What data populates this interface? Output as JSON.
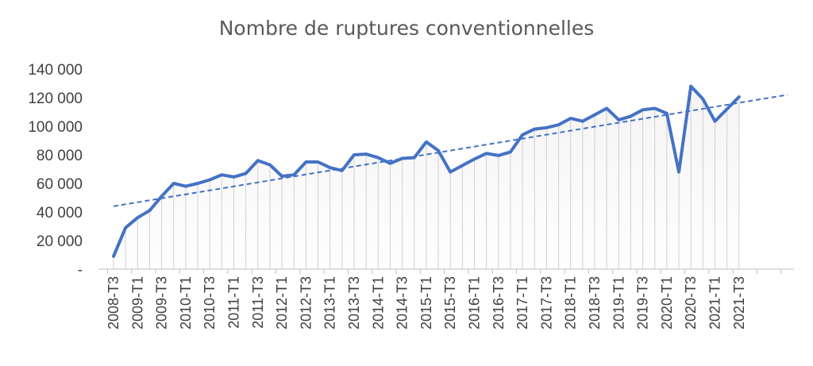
{
  "colors": {
    "series": "#4472C4",
    "trend": "#4472C4",
    "drop_line": "#d0d0d0",
    "fill_top": "#f4f4f4",
    "axis": "#bfbfbf",
    "text": "#404040",
    "title": "#595959"
  },
  "chart_data": {
    "type": "line",
    "title": "Nombre de ruptures conventionnelles",
    "xlabel": "",
    "ylabel": "",
    "ylim": [
      0,
      140000
    ],
    "y_ticks": [
      0,
      20000,
      40000,
      60000,
      80000,
      100000,
      120000,
      140000
    ],
    "y_tick_labels": [
      "-",
      "20 000",
      "40 000",
      "60 000",
      "80 000",
      "100 000",
      "120 000",
      "140 000"
    ],
    "x_tick_labels": [
      "2008-T3",
      "2009-T1",
      "2009-T3",
      "2010-T1",
      "2010-T3",
      "2011-T1",
      "2011-T3",
      "2012-T1",
      "2012-T3",
      "2013-T1",
      "2013-T3",
      "2014-T1",
      "2014-T3",
      "2015-T1",
      "2015-T3",
      "2016-T1",
      "2016-T3",
      "2017-T1",
      "2017-T3",
      "2018-T1",
      "2018-T3",
      "2019-T1",
      "2019-T3",
      "2020-T1",
      "2020-T3",
      "2021-T1",
      "2021-T3"
    ],
    "grid": false,
    "legend": "none",
    "categories": [
      "2008-T3",
      "2008-T4",
      "2009-T1",
      "2009-T2",
      "2009-T3",
      "2009-T4",
      "2010-T1",
      "2010-T2",
      "2010-T3",
      "2010-T4",
      "2011-T1",
      "2011-T2",
      "2011-T3",
      "2011-T4",
      "2012-T1",
      "2012-T2",
      "2012-T3",
      "2012-T4",
      "2013-T1",
      "2013-T2",
      "2013-T3",
      "2013-T4",
      "2014-T1",
      "2014-T2",
      "2014-T3",
      "2014-T4",
      "2015-T1",
      "2015-T2",
      "2015-T3",
      "2015-T4",
      "2016-T1",
      "2016-T2",
      "2016-T3",
      "2016-T4",
      "2017-T1",
      "2017-T2",
      "2017-T3",
      "2017-T4",
      "2018-T1",
      "2018-T2",
      "2018-T3",
      "2018-T4",
      "2019-T1",
      "2019-T2",
      "2019-T3",
      "2019-T4",
      "2020-T1",
      "2020-T2",
      "2020-T3",
      "2020-T4",
      "2021-T1",
      "2021-T2",
      "2021-T3"
    ],
    "series": [
      {
        "values": [
          9000,
          29000,
          36000,
          41000,
          51000,
          60000,
          58000,
          60000,
          62500,
          66000,
          64500,
          67000,
          76000,
          73000,
          65000,
          66000,
          75000,
          75000,
          71000,
          69000,
          80000,
          80500,
          78000,
          74000,
          77500,
          78000,
          89000,
          83000,
          68000,
          72500,
          77000,
          81000,
          79500,
          82000,
          94000,
          98000,
          99000,
          101000,
          105500,
          103500,
          108000,
          112500,
          104500,
          107000,
          111500,
          112500,
          109000,
          68000,
          128000,
          119000,
          103500,
          112000,
          120500
        ]
      }
    ],
    "trendline": {
      "type": "linear",
      "style": "dashed",
      "start": 44000,
      "end": 122000
    }
  }
}
